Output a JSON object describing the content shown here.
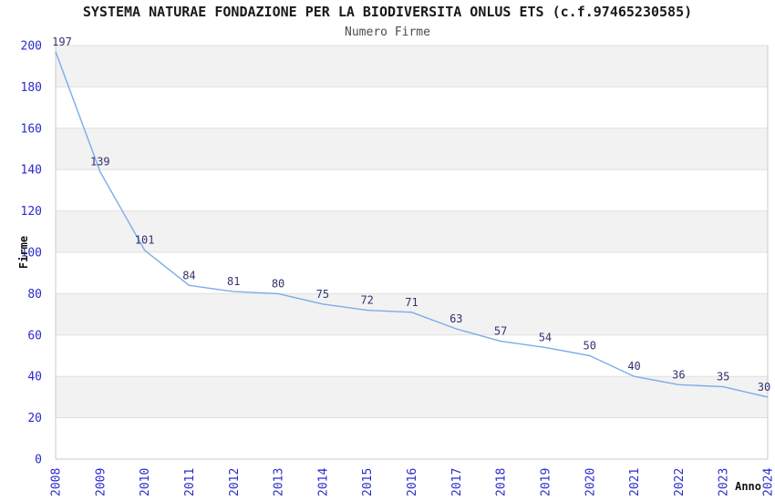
{
  "chart_data": {
    "type": "line",
    "title": "SYSTEMA NATURAE FONDAZIONE PER LA BIODIVERSITA ONLUS ETS (c.f.97465230585)",
    "subtitle": "Numero Firme",
    "xlabel": "Anno",
    "ylabel": "Firme",
    "categories": [
      "2008",
      "2009",
      "2010",
      "2011",
      "2012",
      "2013",
      "2014",
      "2015",
      "2016",
      "2017",
      "2018",
      "2019",
      "2020",
      "2021",
      "2022",
      "2023",
      "2024"
    ],
    "series": [
      {
        "name": "Numero Firme",
        "values": [
          197,
          139,
          101,
          84,
          81,
          80,
          75,
          72,
          71,
          63,
          57,
          54,
          50,
          40,
          36,
          35,
          30
        ]
      }
    ],
    "ylim": [
      0,
      200
    ],
    "ytick_step": 20,
    "data_labels": true,
    "legend_position": "none",
    "grid": "horizontal-gridlines-with-alternating-bands",
    "x_tick_rotation": -90,
    "colors": {
      "line": "#7dabe8",
      "tick_label": "#2b2bcc",
      "data_label": "#32326e",
      "band": "#f2f2f2",
      "gridline": "#e0e0e0",
      "axis_border": "#c9c9c9",
      "title": "#1a1a1a",
      "subtitle": "#4d4d4d",
      "axis_title": "#111111",
      "background": "#ffffff"
    }
  }
}
